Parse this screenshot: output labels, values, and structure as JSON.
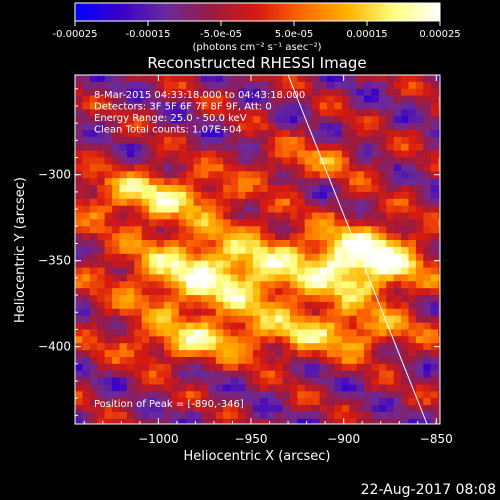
{
  "colorbar": {
    "ticks": [
      "-0.00025",
      "-0.00015",
      "-5.0e-05",
      "5.0e-05",
      "0.00015",
      "0.00025"
    ],
    "range": [
      -0.00025,
      0.00025
    ],
    "units": "(photons cm⁻² s⁻¹ asec⁻²)",
    "colors": [
      "#0000ff",
      "#3a00c8",
      "#6a2a9a",
      "#9a1a40",
      "#d81a10",
      "#ff6a00",
      "#ffb400",
      "#ffff80",
      "#ffffff"
    ]
  },
  "chart_data": {
    "type": "heatmap",
    "title": "Reconstructed RHESSI Image",
    "xlabel": "Heliocentric X (arcsec)",
    "ylabel": "Heliocentric Y (arcsec)",
    "xlim": [
      -1045,
      -848
    ],
    "ylim": [
      -445,
      -242
    ],
    "xticks": [
      -1000,
      -950,
      -900,
      -850
    ],
    "yticks": [
      -300,
      -350,
      -400
    ],
    "annotations": [
      "8-Mar-2015 04:33:18.000 to 04:43:18.000",
      "Detectors: 3F 5F 6F 7F 8F 9F, Att: 0",
      "Energy Range: 25.0 - 50.0 keV",
      "Clean    Total counts: 1.07E+04"
    ],
    "peak_label": "Position of Peak = [-890,-346]",
    "peak": [
      -890,
      -346
    ],
    "sources": [
      {
        "x": -890,
        "y": -348,
        "sx": 22,
        "sy": 14,
        "amp": 1.0
      },
      {
        "x": -970,
        "y": -355,
        "sx": 38,
        "sy": 18,
        "amp": 0.85
      },
      {
        "x": -1005,
        "y": -310,
        "sx": 30,
        "sy": 10,
        "amp": 0.7
      },
      {
        "x": -905,
        "y": -390,
        "sx": 30,
        "sy": 10,
        "amp": 0.6
      },
      {
        "x": -985,
        "y": -395,
        "sx": 28,
        "sy": 9,
        "amp": 0.55
      },
      {
        "x": -920,
        "y": -290,
        "sx": 25,
        "sy": 8,
        "amp": 0.35
      }
    ],
    "limb_line": [
      [
        -930,
        -242
      ],
      [
        -855,
        -445
      ]
    ]
  },
  "timestamp": "22-Aug-2017 08:08"
}
